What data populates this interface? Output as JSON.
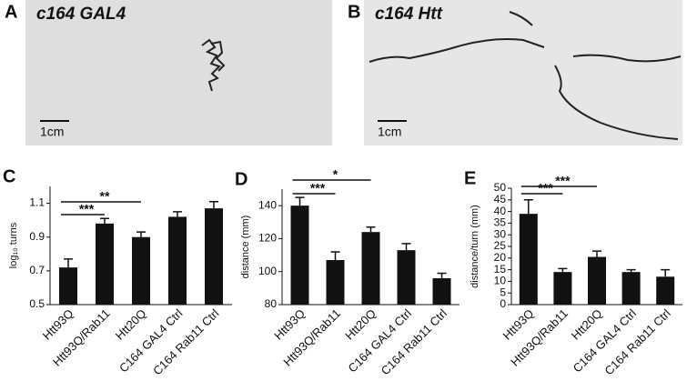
{
  "photos": [
    {
      "panel_label": "A",
      "label": "c164  GAL4",
      "scale": "1cm"
    },
    {
      "panel_label": "B",
      "label": "c164  Htt",
      "scale": "1cm"
    }
  ],
  "chart_data": [
    {
      "type": "bar",
      "panel_label": "C",
      "ylabel": "log₁₀ turns",
      "categories": [
        "Htt93Q",
        "Htt93Q/Rab11",
        "Htt20Q",
        "C164 GAL4 Ctrl",
        "C164 Rab11 Ctrl"
      ],
      "values": [
        0.72,
        0.98,
        0.9,
        1.02,
        1.07
      ],
      "errors": [
        0.05,
        0.03,
        0.03,
        0.03,
        0.04
      ],
      "color": "#111111",
      "ylim": [
        0.5,
        1.2
      ],
      "yticks": [
        0.5,
        0.7,
        0.9,
        1.1
      ],
      "annotations": [
        "***",
        "**"
      ]
    },
    {
      "type": "bar",
      "panel_label": "D",
      "ylabel": "distance (mm)",
      "categories": [
        "Htt93Q",
        "Htt93Q/Rab11",
        "Htt20Q",
        "C164 GAL4 Ctrl",
        "C164 Rab11 Ctrl"
      ],
      "values": [
        140,
        107,
        124,
        113,
        96
      ],
      "errors": [
        5,
        5,
        3,
        4,
        3
      ],
      "color": "#111111",
      "ylim": [
        80,
        150
      ],
      "yticks": [
        80,
        100,
        120,
        140
      ],
      "annotations": [
        "***",
        "*"
      ]
    },
    {
      "type": "bar",
      "panel_label": "E",
      "ylabel": "distance/turn (mm)",
      "categories": [
        "Htt93Q",
        "Htt93Q/Rab11",
        "Htt20Q",
        "C164 GAL4 Ctrl",
        "C164 Rab11 Ctrl"
      ],
      "values": [
        39,
        14,
        20.5,
        14,
        12
      ],
      "errors": [
        6,
        1.5,
        2.5,
        1,
        3
      ],
      "color": "#111111",
      "ylim": [
        0,
        50
      ],
      "yticks": [
        0,
        5,
        10,
        15,
        20,
        25,
        30,
        35,
        40,
        45,
        50
      ],
      "annotations": [
        "***",
        "***"
      ]
    }
  ]
}
